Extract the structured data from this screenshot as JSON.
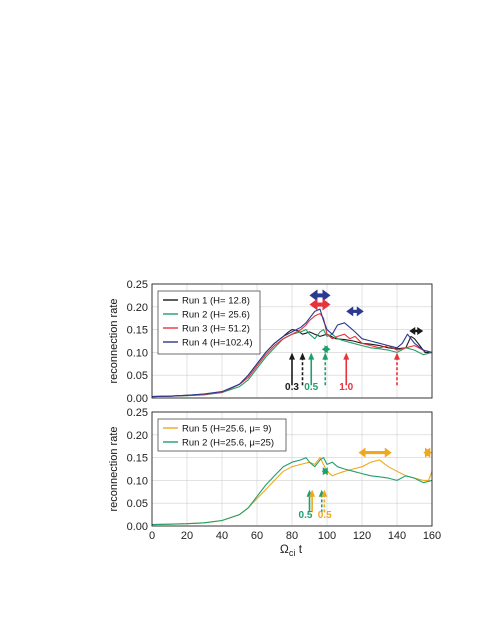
{
  "colors": {
    "run1": "#1a1a1a",
    "run2": "#1f9f6b",
    "run3": "#e8323c",
    "run4": "#2b3a8f",
    "run5": "#f0a81e",
    "grid": "#d0d0d0"
  },
  "xlabel": "Ω",
  "xlabel_sub": "ci",
  "xlabel_tail": " t",
  "chart_data": [
    {
      "type": "line",
      "ylabel": "reconnection rate",
      "xlim": [
        0,
        160
      ],
      "ylim": [
        0,
        0.25
      ],
      "xticks": [
        "0",
        "20",
        "40",
        "60",
        "80",
        "100",
        "120",
        "140",
        "160"
      ],
      "yticks": [
        "0.00",
        "0.05",
        "0.10",
        "0.15",
        "0.20",
        "0.25"
      ],
      "grid": true,
      "legend_position": "top-left",
      "legend": [
        "Run 1 (H=  12.8)",
        "Run 2 (H=  25.6)",
        "Run 3 (H=  51.2)",
        "Run 4 (H=102.4)"
      ],
      "series": [
        {
          "name": "Run 1 (H=  12.8)",
          "color": "run1",
          "x": [
            0,
            10,
            20,
            30,
            40,
            50,
            55,
            60,
            65,
            70,
            75,
            78,
            80,
            83,
            86,
            88,
            90,
            93,
            96,
            100,
            105,
            110,
            115,
            120,
            125,
            130,
            135,
            140,
            145,
            148,
            150,
            153,
            156,
            160
          ],
          "y": [
            0.003,
            0.004,
            0.006,
            0.008,
            0.012,
            0.03,
            0.05,
            0.075,
            0.1,
            0.12,
            0.135,
            0.145,
            0.15,
            0.148,
            0.14,
            0.142,
            0.145,
            0.14,
            0.135,
            0.14,
            0.13,
            0.128,
            0.125,
            0.12,
            0.118,
            0.115,
            0.11,
            0.108,
            0.11,
            0.135,
            0.13,
            0.115,
            0.1,
            0.1
          ]
        },
        {
          "name": "Run 2 (H=  25.6)",
          "color": "run2",
          "x": [
            0,
            10,
            20,
            30,
            40,
            50,
            55,
            60,
            65,
            70,
            75,
            80,
            85,
            88,
            90,
            93,
            96,
            98,
            100,
            103,
            106,
            110,
            115,
            120,
            125,
            130,
            135,
            140,
            145,
            150,
            155,
            160
          ],
          "y": [
            0.003,
            0.004,
            0.005,
            0.007,
            0.012,
            0.025,
            0.04,
            0.065,
            0.09,
            0.11,
            0.13,
            0.14,
            0.145,
            0.15,
            0.14,
            0.13,
            0.145,
            0.15,
            0.135,
            0.14,
            0.13,
            0.125,
            0.12,
            0.115,
            0.11,
            0.108,
            0.105,
            0.1,
            0.11,
            0.105,
            0.095,
            0.1
          ]
        },
        {
          "name": "Run 3 (H=  51.2)",
          "color": "run3",
          "x": [
            0,
            10,
            20,
            30,
            40,
            50,
            55,
            60,
            65,
            70,
            75,
            80,
            85,
            88,
            90,
            93,
            96,
            98,
            100,
            103,
            106,
            110,
            113,
            116,
            120,
            125,
            130,
            135,
            140,
            145,
            150,
            155,
            160
          ],
          "y": [
            0.003,
            0.004,
            0.006,
            0.008,
            0.013,
            0.03,
            0.045,
            0.07,
            0.095,
            0.115,
            0.13,
            0.14,
            0.15,
            0.16,
            0.17,
            0.18,
            0.185,
            0.175,
            0.14,
            0.13,
            0.135,
            0.14,
            0.13,
            0.135,
            0.12,
            0.115,
            0.11,
            0.115,
            0.105,
            0.11,
            0.115,
            0.105,
            0.1
          ]
        },
        {
          "name": "Run 4 (H=102.4)",
          "color": "run4",
          "x": [
            0,
            10,
            20,
            30,
            40,
            50,
            55,
            60,
            65,
            70,
            75,
            80,
            85,
            88,
            90,
            93,
            96,
            98,
            100,
            103,
            106,
            110,
            113,
            116,
            120,
            125,
            130,
            135,
            140,
            143,
            146,
            150,
            155,
            160
          ],
          "y": [
            0.003,
            0.004,
            0.006,
            0.009,
            0.014,
            0.03,
            0.05,
            0.075,
            0.1,
            0.12,
            0.135,
            0.145,
            0.155,
            0.165,
            0.175,
            0.19,
            0.195,
            0.17,
            0.15,
            0.14,
            0.16,
            0.165,
            0.155,
            0.145,
            0.13,
            0.125,
            0.12,
            0.115,
            0.11,
            0.12,
            0.14,
            0.12,
            0.105,
            0.1
          ]
        }
      ],
      "annotations": [
        {
          "text": "0.3",
          "x": 80,
          "color": "run1"
        },
        {
          "text": "0.5",
          "x": 91,
          "color": "run2"
        },
        {
          "text": "1.0",
          "x": 111,
          "color": "run3"
        }
      ]
    },
    {
      "type": "line",
      "ylabel": "reconnection rate",
      "xlim": [
        0,
        160
      ],
      "ylim": [
        0,
        0.25
      ],
      "xticks": [
        "0",
        "20",
        "40",
        "60",
        "80",
        "100",
        "120",
        "140",
        "160"
      ],
      "yticks": [
        "0.00",
        "0.05",
        "0.10",
        "0.15",
        "0.20",
        "0.25"
      ],
      "grid": true,
      "legend_position": "top-left",
      "legend": [
        "Run 5 (H=25.6, μ= 9)",
        "Run 2 (H=25.6, μ=25)"
      ],
      "series": [
        {
          "name": "Run 5 (H=25.6, μ= 9)",
          "color": "run5",
          "x": [
            0,
            10,
            20,
            30,
            40,
            50,
            55,
            60,
            65,
            70,
            75,
            80,
            85,
            90,
            93,
            96,
            98,
            100,
            103,
            106,
            110,
            115,
            120,
            125,
            130,
            135,
            140,
            145,
            150,
            155,
            158,
            160
          ],
          "y": [
            0.003,
            0.004,
            0.005,
            0.007,
            0.012,
            0.025,
            0.04,
            0.06,
            0.08,
            0.1,
            0.12,
            0.13,
            0.135,
            0.14,
            0.135,
            0.15,
            0.135,
            0.12,
            0.11,
            0.115,
            0.12,
            0.125,
            0.13,
            0.14,
            0.145,
            0.13,
            0.12,
            0.11,
            0.105,
            0.1,
            0.1,
            0.12
          ]
        },
        {
          "name": "Run 2 (H=25.6, μ=25)",
          "color": "run2",
          "x": [
            0,
            10,
            20,
            30,
            40,
            50,
            55,
            60,
            65,
            70,
            75,
            80,
            85,
            88,
            90,
            93,
            96,
            98,
            100,
            103,
            106,
            110,
            115,
            120,
            125,
            130,
            135,
            140,
            145,
            150,
            155,
            160
          ],
          "y": [
            0.003,
            0.004,
            0.005,
            0.007,
            0.012,
            0.025,
            0.04,
            0.065,
            0.09,
            0.11,
            0.13,
            0.14,
            0.145,
            0.15,
            0.14,
            0.13,
            0.145,
            0.15,
            0.135,
            0.14,
            0.13,
            0.125,
            0.12,
            0.115,
            0.11,
            0.108,
            0.105,
            0.1,
            0.11,
            0.105,
            0.095,
            0.1
          ]
        }
      ],
      "annotations": [
        {
          "text": "0.5",
          "x": 90,
          "color": "run2"
        },
        {
          "text": "0.5",
          "x": 97,
          "color": "run5"
        }
      ]
    }
  ]
}
